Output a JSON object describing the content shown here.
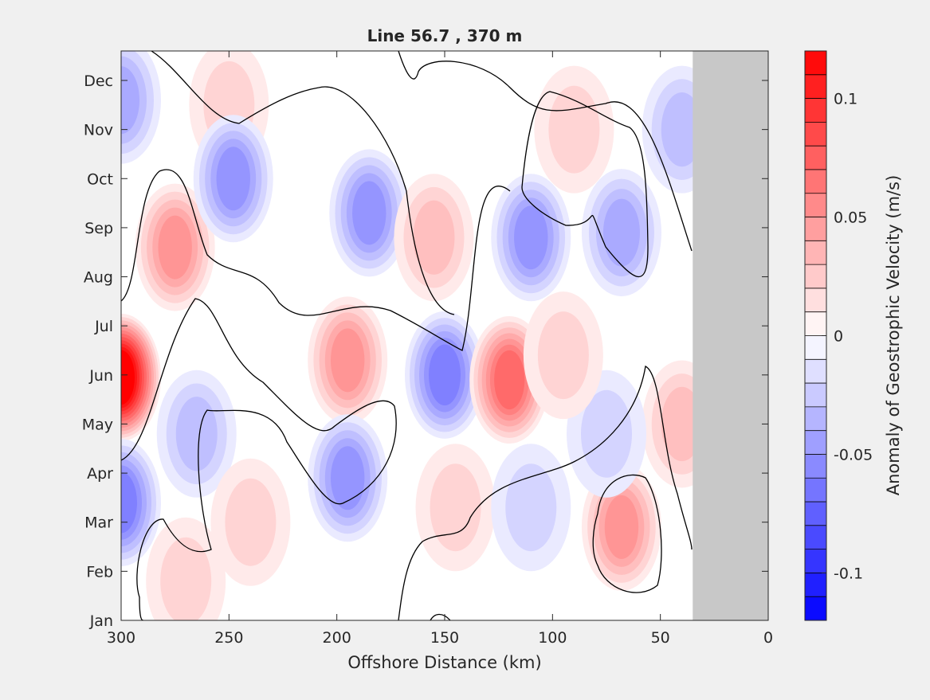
{
  "chart_data": {
    "type": "heatmap",
    "title": "Line 56.7 , 370 m",
    "xlabel": "Offshore Distance (km)",
    "ylabel": "",
    "x_axis_reversed": true,
    "xlim": [
      0,
      300
    ],
    "x_ticks": [
      300,
      250,
      200,
      150,
      100,
      50,
      0
    ],
    "y_ticks": [
      "Jan",
      "Feb",
      "Mar",
      "Apr",
      "May",
      "Jun",
      "Jul",
      "Aug",
      "Sep",
      "Oct",
      "Nov",
      "Dec"
    ],
    "no_data_region_km": [
      0,
      35
    ],
    "zero_contour": "black lines",
    "colorbar": {
      "label": "Anomaly of Geostrophic Velocity (m/s)",
      "range": [
        -0.12,
        0.12
      ],
      "level_step": 0.01,
      "tick_values": [
        0.1,
        0.05,
        0,
        -0.05,
        -0.1
      ],
      "tick_labels": [
        "0.1",
        "0.05",
        "0",
        "-0.05",
        "-0.1"
      ],
      "colormap": "blue-white-red"
    },
    "features": [
      {
        "x_km": 300,
        "month": 5.95,
        "value": 0.12
      },
      {
        "x_km": 275,
        "month": 8.6,
        "value": 0.05
      },
      {
        "x_km": 250,
        "month": 11.5,
        "value": 0.02
      },
      {
        "x_km": 300,
        "month": 11.6,
        "value": -0.04
      },
      {
        "x_km": 248,
        "month": 10.0,
        "value": -0.05
      },
      {
        "x_km": 185,
        "month": 9.3,
        "value": -0.05
      },
      {
        "x_km": 195,
        "month": 6.3,
        "value": 0.05
      },
      {
        "x_km": 150,
        "month": 6.0,
        "value": -0.06
      },
      {
        "x_km": 120,
        "month": 5.9,
        "value": 0.07
      },
      {
        "x_km": 195,
        "month": 3.9,
        "value": -0.05
      },
      {
        "x_km": 300,
        "month": 3.4,
        "value": -0.06
      },
      {
        "x_km": 110,
        "month": 8.8,
        "value": -0.05
      },
      {
        "x_km": 68,
        "month": 8.9,
        "value": -0.04
      },
      {
        "x_km": 68,
        "month": 2.9,
        "value": 0.05
      },
      {
        "x_km": 155,
        "month": 8.8,
        "value": 0.03
      },
      {
        "x_km": 90,
        "month": 11.0,
        "value": 0.02
      },
      {
        "x_km": 40,
        "month": 11.0,
        "value": -0.025
      },
      {
        "x_km": 40,
        "month": 5.0,
        "value": 0.03
      },
      {
        "x_km": 75,
        "month": 4.8,
        "value": -0.02
      },
      {
        "x_km": 145,
        "month": 3.3,
        "value": 0.02
      },
      {
        "x_km": 265,
        "month": 4.8,
        "value": -0.03
      },
      {
        "x_km": 240,
        "month": 3.0,
        "value": 0.015
      },
      {
        "x_km": 270,
        "month": 1.8,
        "value": 0.015
      },
      {
        "x_km": 110,
        "month": 3.3,
        "value": -0.02
      },
      {
        "x_km": 95,
        "month": 6.4,
        "value": 0.02
      }
    ]
  }
}
